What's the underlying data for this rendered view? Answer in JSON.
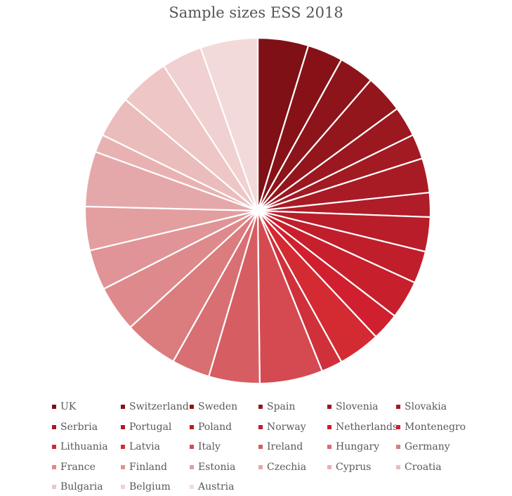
{
  "chart_data": {
    "type": "pie",
    "title": "Sample sizes ESS 2018",
    "categories": [
      "UK",
      "Switzerland",
      "Sweden",
      "Spain",
      "Slovenia",
      "Slovakia",
      "Serbria",
      "Portugal",
      "Poland",
      "Norway",
      "Netherlands",
      "Montenegro",
      "Lithuania",
      "Latvia",
      "Italy",
      "Ireland",
      "Hungary",
      "Germany",
      "France",
      "Finland",
      "Estonia",
      "Czechia",
      "Cyprus",
      "Croatia",
      "Bulgaria",
      "Belgium",
      "Austria"
    ],
    "values": [
      2204,
      1542,
      1539,
      1668,
      1318,
      1083,
      1500,
      1055,
      1500,
      1406,
      1673,
      1200,
      1835,
      918,
      2745,
      2216,
      1661,
      2358,
      2010,
      1755,
      1904,
      2398,
      781,
      1810,
      2198,
      1767,
      2499
    ],
    "colors": [
      "#7f1016",
      "#861218",
      "#8d141a",
      "#94161d",
      "#9b1820",
      "#a21a22",
      "#a91b24",
      "#b01c27",
      "#b81d29",
      "#c01e2b",
      "#c81f2d",
      "#d0202f",
      "#d42a32",
      "#d0303a",
      "#d44a50",
      "#d65e62",
      "#d86f72",
      "#db7c7f",
      "#de8a8c",
      "#e09497",
      "#e39ea0",
      "#e5a8aa",
      "#e8b2b3",
      "#ebbcbc",
      "#eec6c6",
      "#f0d0d0",
      "#f3dada"
    ],
    "legend_position": "bottom"
  }
}
